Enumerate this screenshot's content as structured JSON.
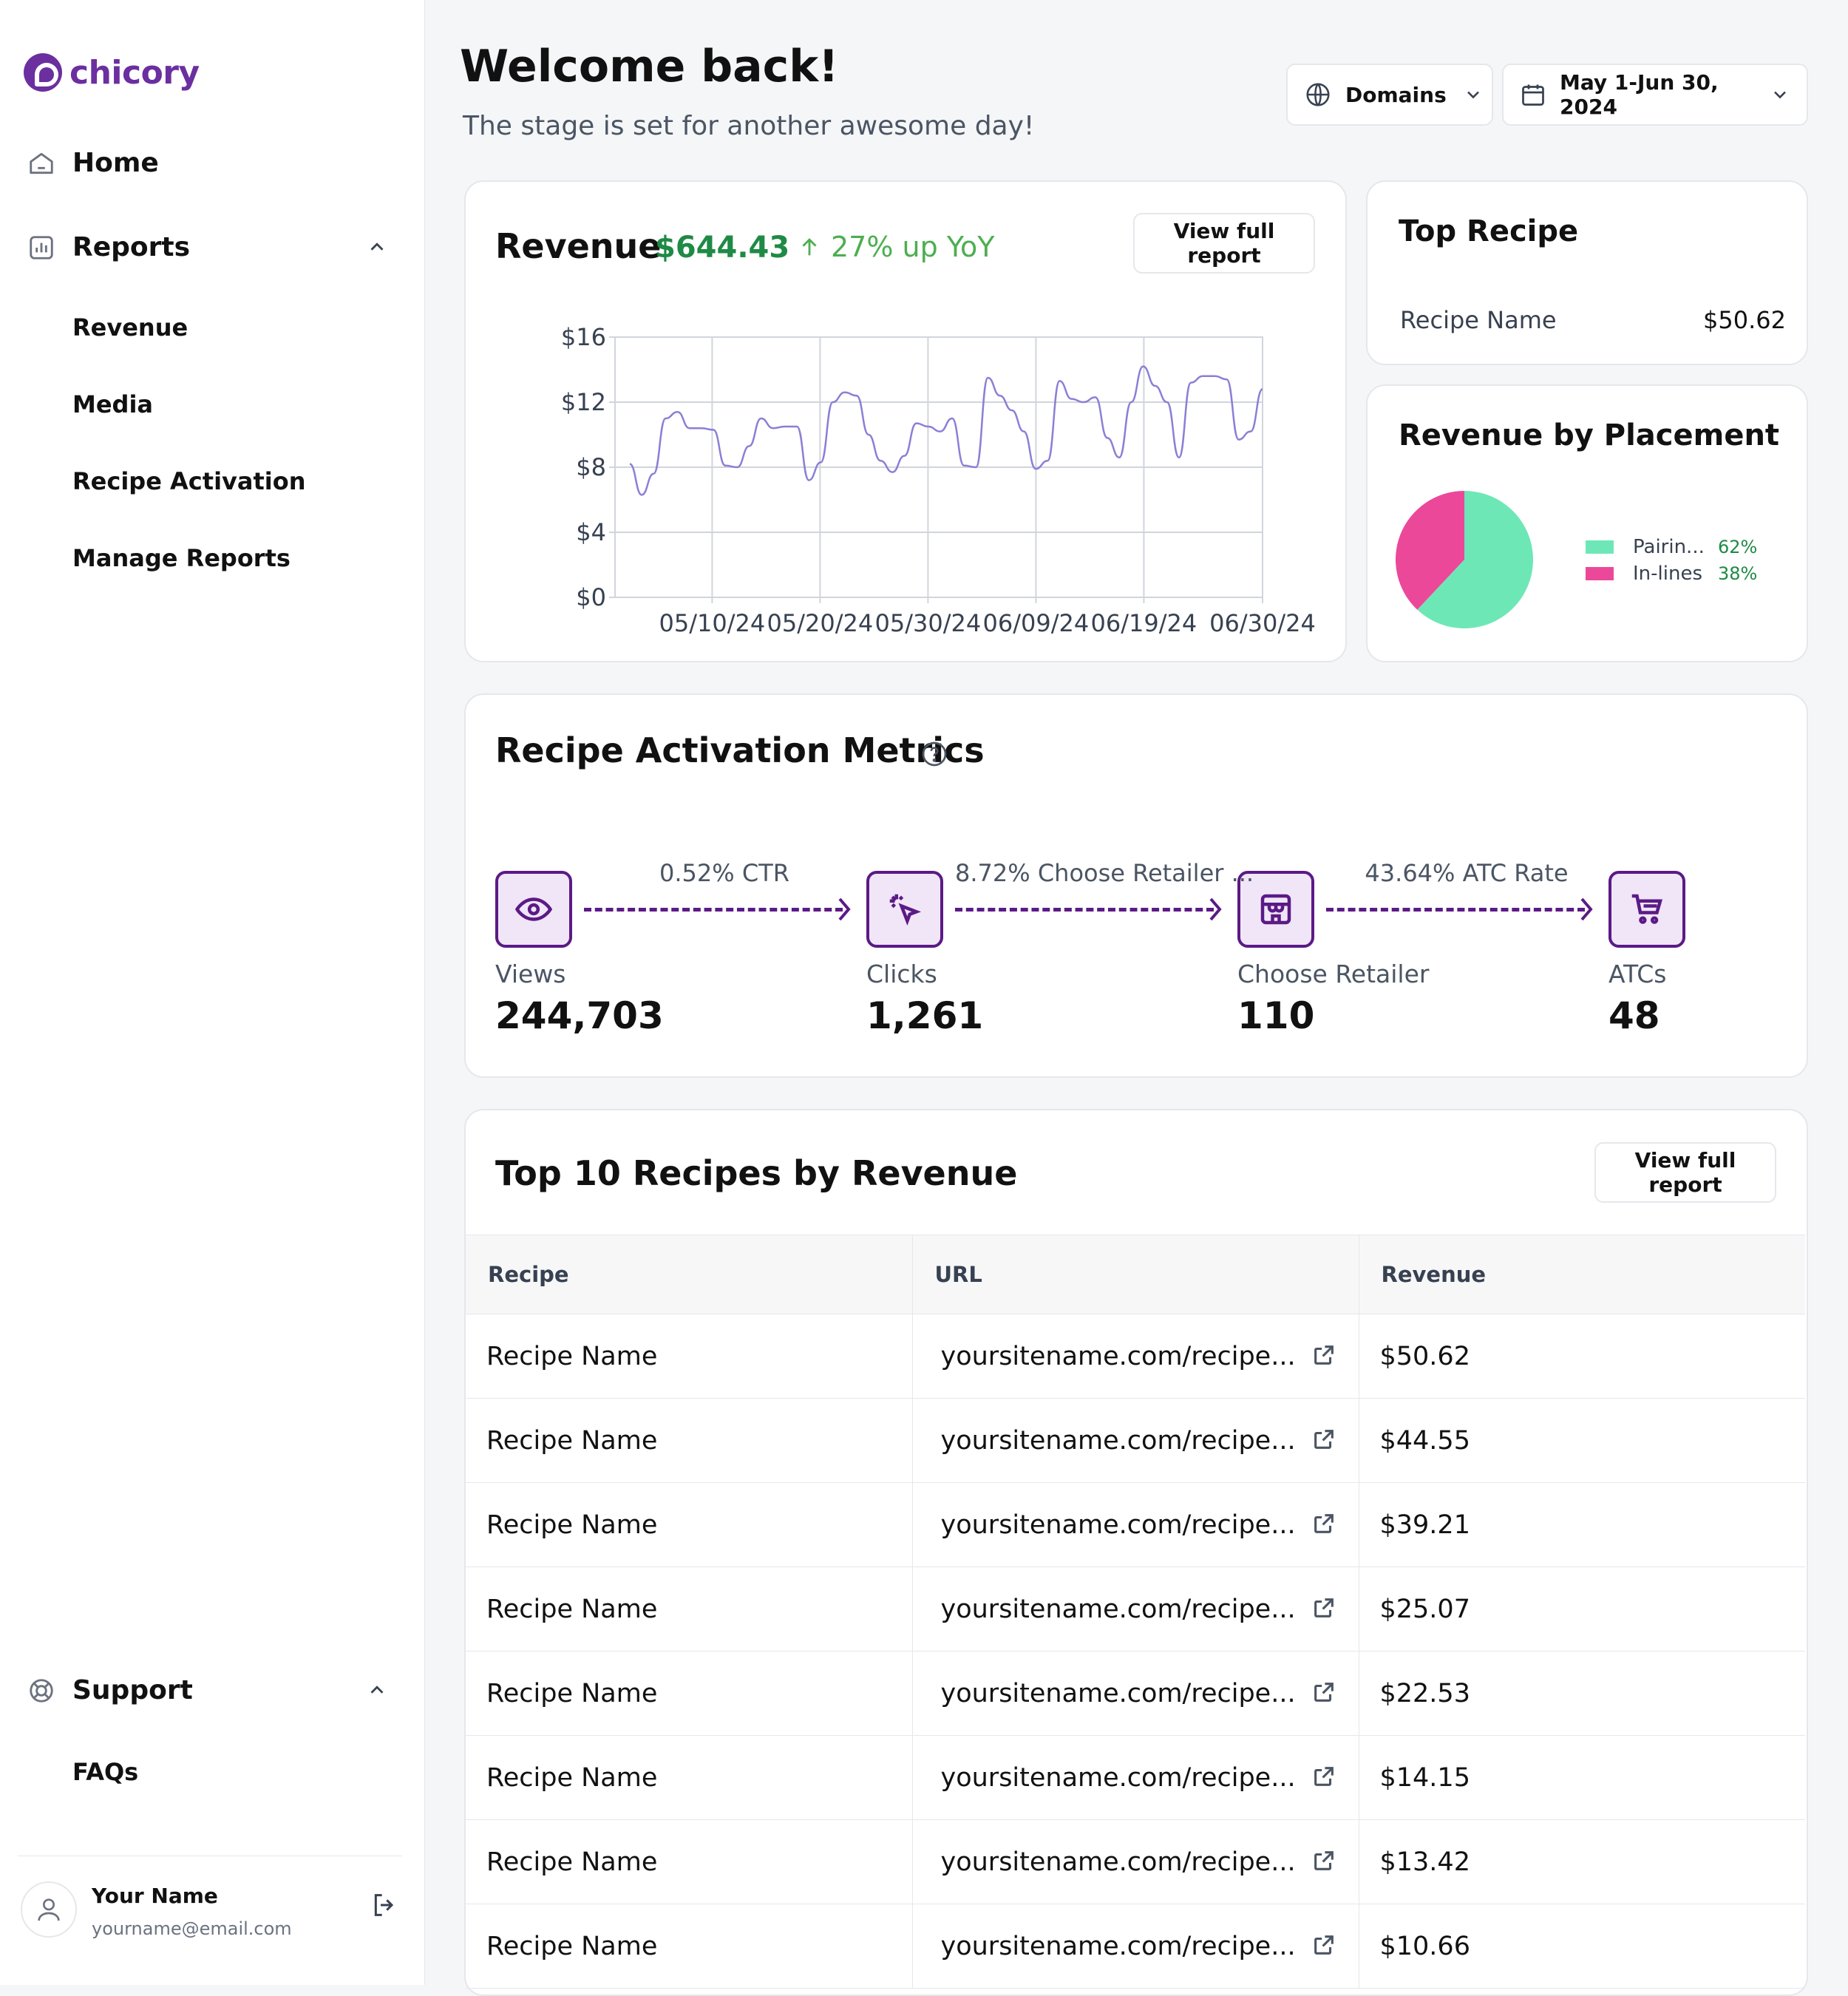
{
  "app": {
    "logo_text": "chicory",
    "brand_color": "#6b2fa0"
  },
  "sidebar": {
    "home_label": "Home",
    "reports_label": "Reports",
    "reports_items": [
      {
        "label": "Revenue"
      },
      {
        "label": "Media"
      },
      {
        "label": "Recipe Activation"
      },
      {
        "label": "Manage Reports"
      }
    ],
    "support_label": "Support",
    "support_items": [
      {
        "label": "FAQs"
      }
    ],
    "user": {
      "name": "Your Name",
      "email": "yourname@email.com"
    }
  },
  "header": {
    "welcome": "Welcome back!",
    "tagline": "The stage is set for another awesome day!",
    "domains_label": "Domains",
    "date_range_label": "May 1-Jun 30, 2024"
  },
  "revenue_card": {
    "title": "Revenue",
    "amount": "$644.43",
    "yoy": "27% up YoY",
    "button_label": "View full report"
  },
  "top_recipe": {
    "title": "Top Recipe",
    "name": "Recipe Name",
    "value": "$50.62"
  },
  "placement": {
    "title": "Revenue by Placement",
    "legend": [
      {
        "label": "Pairin...",
        "pct": "62%",
        "color": "#6ee7b7"
      },
      {
        "label": "In-lines",
        "pct": "38%",
        "color": "#ec4899"
      }
    ]
  },
  "activation": {
    "title": "Recipe Activation Metrics",
    "steps": [
      {
        "label": "Views",
        "value": "244,703",
        "icon": "eye-icon"
      },
      {
        "label": "Clicks",
        "value": "1,261",
        "icon": "cursor-click-icon"
      },
      {
        "label": "Choose Retailer",
        "value": "110",
        "icon": "store-icon"
      },
      {
        "label": "ATCs",
        "value": "48",
        "icon": "cart-icon"
      }
    ],
    "rates": [
      "0.52% CTR",
      "8.72% Choose Retailer ...",
      "43.64% ATC Rate"
    ],
    "accent": "#5b1a86"
  },
  "top10": {
    "title": "Top 10 Recipes by Revenue",
    "button_label": "View full report",
    "columns": [
      "Recipe",
      "URL",
      "Revenue"
    ],
    "rows": [
      {
        "recipe": "Recipe Name",
        "url": "yoursitename.com/recipe...",
        "revenue": "$50.62"
      },
      {
        "recipe": "Recipe Name",
        "url": "yoursitename.com/recipe...",
        "revenue": "$44.55"
      },
      {
        "recipe": "Recipe Name",
        "url": "yoursitename.com/recipe...",
        "revenue": "$39.21"
      },
      {
        "recipe": "Recipe Name",
        "url": "yoursitename.com/recipe...",
        "revenue": "$25.07"
      },
      {
        "recipe": "Recipe Name",
        "url": "yoursitename.com/recipe...",
        "revenue": "$22.53"
      },
      {
        "recipe": "Recipe Name",
        "url": "yoursitename.com/recipe...",
        "revenue": "$14.15"
      },
      {
        "recipe": "Recipe Name",
        "url": "yoursitename.com/recipe...",
        "revenue": "$13.42"
      },
      {
        "recipe": "Recipe Name",
        "url": "yoursitename.com/recipe...",
        "revenue": "$10.66"
      }
    ]
  },
  "chart_data": [
    {
      "type": "line",
      "x_tick_labels": [
        "05/10/24",
        "05/20/24",
        "05/30/24",
        "06/09/24",
        "06/19/24",
        "06/30/24"
      ],
      "y_tick_labels": [
        "$0",
        "$4",
        "$8",
        "$12",
        "$16"
      ],
      "ylim": [
        0,
        16
      ],
      "x_start": "05/01/24",
      "x_end": "06/30/24",
      "grid": true,
      "line_color": "#8b7fd6",
      "series": [
        {
          "values": [
            8.2,
            6.3,
            7.6,
            11.0,
            11.4,
            10.4,
            10.4,
            10.3,
            8.1,
            8.0,
            9.3,
            11.0,
            10.4,
            10.5,
            10.5,
            7.2,
            8.3,
            12.0,
            12.6,
            12.4,
            10.0,
            8.4,
            7.7,
            8.7,
            10.7,
            10.5,
            10.2,
            11.0,
            8.1,
            8.0,
            13.5,
            12.4,
            11.5,
            10.2,
            7.9,
            8.4,
            13.3,
            12.2,
            12.0,
            12.3,
            9.8,
            8.6,
            12.0,
            14.2,
            13.0,
            12.0,
            8.6,
            13.2,
            13.6,
            13.6,
            13.4,
            9.7,
            10.2,
            12.8
          ]
        }
      ]
    },
    {
      "type": "pie",
      "labels": [
        "Pairin...",
        "In-lines"
      ],
      "values": [
        62,
        38
      ],
      "colors": [
        "#6ee7b7",
        "#ec4899"
      ]
    }
  ]
}
